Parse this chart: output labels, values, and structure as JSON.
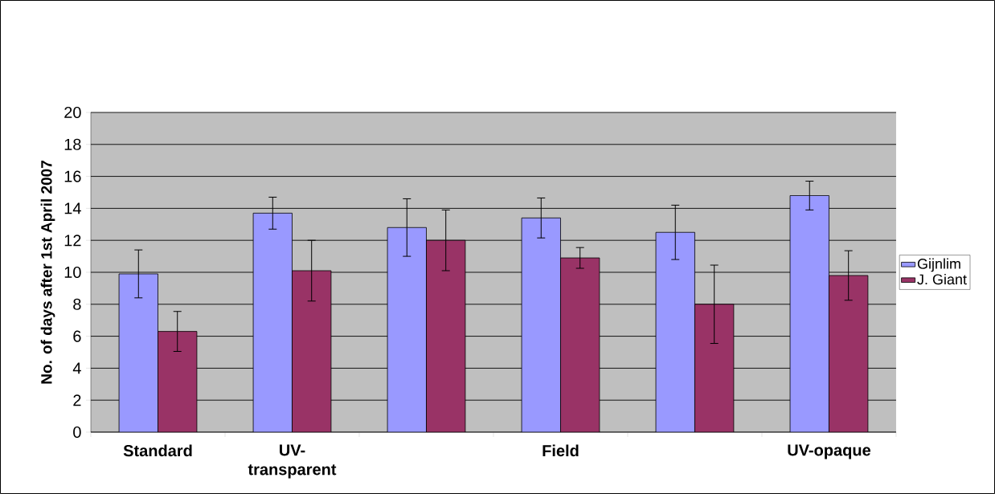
{
  "chart_data": {
    "type": "bar",
    "ylabel": "No. of days after 1st April 2007",
    "categories": [
      "Standard",
      "UV-transparent",
      null,
      "Field",
      null,
      "UV-opaque"
    ],
    "series": [
      {
        "name": "Gijnlim",
        "color": "#9999ff",
        "values": [
          9.9,
          13.7,
          12.8,
          13.4,
          12.5,
          14.8
        ],
        "errors": [
          1.5,
          1.0,
          1.8,
          1.25,
          1.7,
          0.9
        ]
      },
      {
        "name": "J. Giant",
        "color": "#993366",
        "values": [
          6.3,
          10.1,
          12.0,
          10.9,
          8.0,
          9.8
        ],
        "errors": [
          1.25,
          1.9,
          1.9,
          0.65,
          2.45,
          1.55
        ]
      }
    ],
    "ylim": [
      0,
      20
    ],
    "yticks": [
      0,
      2,
      4,
      6,
      8,
      10,
      12,
      14,
      16,
      18,
      20
    ],
    "grid": "y",
    "legend": "right"
  }
}
